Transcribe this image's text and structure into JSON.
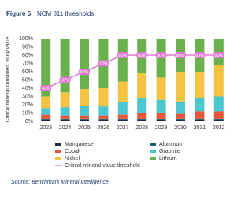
{
  "chart_data": {
    "type": "bar",
    "stacked": true,
    "title_label": "Figure 5:",
    "title": "NCM 811 thresholds",
    "y_label": "Critical mineral contained, % by value",
    "categories": [
      "2023",
      "2024",
      "2025",
      "2026",
      "2027",
      "2028",
      "2029",
      "2030",
      "2031",
      "2032"
    ],
    "series": [
      {
        "name": "Manganese",
        "color": "#1f2a44",
        "values": [
          2,
          2,
          2,
          2,
          2,
          2,
          2,
          2,
          2,
          2
        ]
      },
      {
        "name": "Aluminum",
        "color": "#1b5e6b",
        "values": [
          1,
          1,
          1,
          1,
          1,
          1,
          1,
          1,
          1,
          1
        ]
      },
      {
        "name": "Cobalt",
        "color": "#e8563a",
        "values": [
          5,
          4,
          4,
          4,
          5,
          7,
          7,
          6,
          9,
          9
        ]
      },
      {
        "name": "Graphite",
        "color": "#4cc6cf",
        "values": [
          8,
          10,
          12,
          11,
          15,
          18,
          16,
          15,
          16,
          18
        ]
      },
      {
        "name": "Nickel",
        "color": "#f5c342",
        "values": [
          14,
          18,
          20,
          22,
          25,
          30,
          27,
          36,
          31,
          38
        ]
      },
      {
        "name": "Lithium",
        "color": "#6ab04c",
        "values": [
          70,
          65,
          61,
          60,
          52,
          42,
          47,
          40,
          41,
          32
        ]
      }
    ],
    "threshold": {
      "name": "Critical mineral value threshold",
      "color": "#e07ad0",
      "values": [
        40,
        50,
        60,
        70,
        80,
        80,
        80,
        80,
        80,
        80
      ],
      "value_labels": [
        "40%",
        "50%",
        "60%",
        "70%",
        "80%",
        "80%",
        "80%",
        "80%",
        "80%",
        "80%"
      ]
    },
    "ylim": [
      0,
      100
    ],
    "yticks": [
      {
        "value": 0,
        "label": "0%"
      },
      {
        "value": 10,
        "label": "10%"
      },
      {
        "value": 20,
        "label": "20%"
      },
      {
        "value": 30,
        "label": "30%"
      },
      {
        "value": 40,
        "label": "40%"
      },
      {
        "value": 50,
        "label": "50%"
      },
      {
        "value": 60,
        "label": "60%"
      },
      {
        "value": 70,
        "label": "70%"
      },
      {
        "value": 80,
        "label": "80%"
      },
      {
        "value": 90,
        "label": "90%"
      },
      {
        "value": 100,
        "label": "100%"
      }
    ],
    "grid": false,
    "source": "Source: Benchmark Mineral Intelligence."
  }
}
